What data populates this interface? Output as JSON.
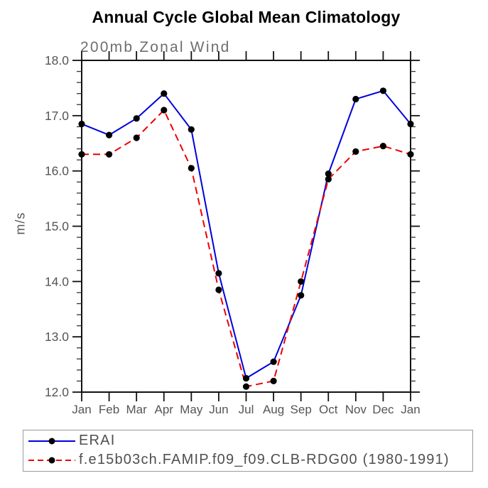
{
  "page": {
    "background": "#ffffff"
  },
  "chart_data": {
    "type": "line",
    "title": "Annual Cycle Global Mean Climatology",
    "subtitle": "200mb Zonal Wind",
    "ylabel": "m/s",
    "xlabel": "",
    "categories": [
      "Jan",
      "Feb",
      "Mar",
      "Apr",
      "May",
      "Jun",
      "Jul",
      "Aug",
      "Sep",
      "Oct",
      "Nov",
      "Dec",
      "Jan"
    ],
    "ylim": [
      12.0,
      18.0
    ],
    "ytick_major": 1.0,
    "ytick_minor": 0.2,
    "ytick_labels": [
      "12.0",
      "13.0",
      "14.0",
      "15.0",
      "16.0",
      "17.0",
      "18.0"
    ],
    "grid": false,
    "legend_position": "bottom-left-box",
    "series": [
      {
        "name": "ERAI",
        "color": "#0000dd",
        "line_style": "solid",
        "marker": "filled-circle",
        "values": [
          16.85,
          16.65,
          16.95,
          17.4,
          16.75,
          14.15,
          12.25,
          12.55,
          13.75,
          15.95,
          17.3,
          17.45,
          16.85
        ]
      },
      {
        "name": "f.e15b03ch.FAMIP.f09_f09.CLB-RDG00 (1980-1991)",
        "color": "#ee0000",
        "line_style": "dashed",
        "marker": "filled-circle",
        "values": [
          16.3,
          16.3,
          16.6,
          17.1,
          16.05,
          13.85,
          12.1,
          12.2,
          14.0,
          15.85,
          16.35,
          16.45,
          16.3
        ]
      }
    ],
    "colors": {
      "axis": "#111111",
      "minor_tick": "#333333",
      "tick_label": "#555555",
      "title": "#000000",
      "subtitle": "#6e6e6e",
      "legend_border": "#9a9a9a",
      "legend_text": "#4f4f4f",
      "marker": "#000000"
    }
  }
}
